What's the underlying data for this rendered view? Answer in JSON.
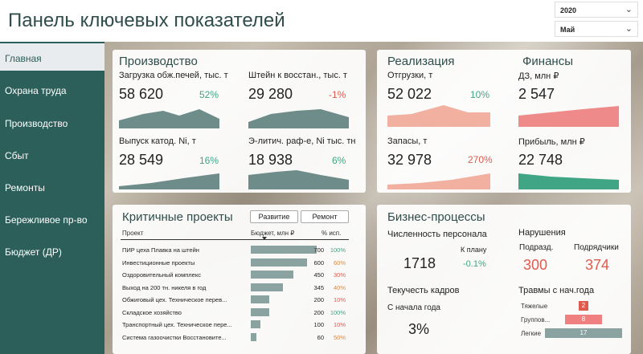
{
  "header": {
    "title": "Панель ключевых показателей",
    "year": "2020",
    "month": "Май"
  },
  "sidebar": {
    "items": [
      {
        "label": "Главная",
        "active": true
      },
      {
        "label": "Охрана труда"
      },
      {
        "label": "Производство"
      },
      {
        "label": "Сбыт"
      },
      {
        "label": "Ремонты"
      },
      {
        "label": "Бережливое пр-во"
      },
      {
        "label": "Бюджет (ДР)"
      }
    ]
  },
  "production": {
    "title": "Производство",
    "kpis": [
      {
        "label": "Загрузка обж.печей, тыс. т",
        "value": "58 620",
        "pct": "52%"
      },
      {
        "label": "Штейн к восстан., тыс. т",
        "value": "29 280",
        "pct": "-1%"
      },
      {
        "label": "Выпуск катод. Ni, т",
        "value": "28 549",
        "pct": "16%"
      },
      {
        "label": "Э-литич. раф-е, Ni тыс. тн",
        "value": "18 938",
        "pct": "6%"
      }
    ]
  },
  "sales": {
    "title": "Реализация",
    "kpis": [
      {
        "label": "Отгрузки, т",
        "value": "52 022",
        "pct": "10%"
      },
      {
        "label": "Запасы, т",
        "value": "32 978",
        "pct": "270%"
      }
    ]
  },
  "finance": {
    "title": "Финансы",
    "kpis": [
      {
        "label": "ДЗ, млн ₽",
        "value": "2 547"
      },
      {
        "label": "Прибыль, млн ₽",
        "value": "22 748"
      }
    ]
  },
  "projects": {
    "title": "Критичные проекты",
    "btn_dev": "Развитие",
    "btn_repair": "Ремонт",
    "col_project": "Проект",
    "col_budget": "Бюджет, млн ₽",
    "col_pct": "% исп.",
    "rows": [
      {
        "name": "ПИР цеха Плавка на штейн",
        "budget": 700,
        "pct": "100%",
        "color": "#3fa585"
      },
      {
        "name": "Инвестиционные проекты",
        "budget": 600,
        "pct": "60%",
        "color": "#e08a3a"
      },
      {
        "name": "Оздоровительный комплекс",
        "budget": 450,
        "pct": "30%",
        "color": "#e05a4e"
      },
      {
        "name": "Выход на 200 тн. никеля в год",
        "budget": 345,
        "pct": "40%",
        "color": "#e08a3a"
      },
      {
        "name": "Обжиговый цех. Техническое перев...",
        "budget": 200,
        "pct": "10%",
        "color": "#e05a4e"
      },
      {
        "name": "Складское хозяйство",
        "budget": 200,
        "pct": "100%",
        "color": "#3fa585"
      },
      {
        "name": "Транспортный цех. Техническое пере...",
        "budget": 100,
        "pct": "10%",
        "color": "#e05a4e"
      },
      {
        "name": "Система газоочистки Восстановите...",
        "budget": 60,
        "pct": "50%",
        "color": "#e08a3a"
      }
    ]
  },
  "business": {
    "title": "Бизнес-процессы",
    "staff_label": "Численность персонала",
    "staff_value": "1718",
    "plan_label": "К плану",
    "plan_value": "-0.1%",
    "turnover_label": "Текучесть кадров",
    "since_label": "С начала года",
    "turnover_value": "3%",
    "violations_label": "Нарушения",
    "sub_label": "Подразд.",
    "sub_value": "300",
    "contr_label": "Подрядчики",
    "contr_value": "374",
    "injuries_label": "Травмы с нач.года",
    "injuries": [
      {
        "label": "Тяжелые",
        "value": "2",
        "count": 2,
        "color": "#e05a4e"
      },
      {
        "label": "Группов...",
        "value": "8",
        "count": 8,
        "color": "#f08080"
      },
      {
        "label": "Легкие",
        "value": "17",
        "count": 17,
        "color": "#8aa3a0"
      }
    ]
  },
  "colors": {
    "accent": "#2c5f5a",
    "positive": "#3fa585",
    "negative": "#e05a4e",
    "warning": "#e08a3a"
  }
}
